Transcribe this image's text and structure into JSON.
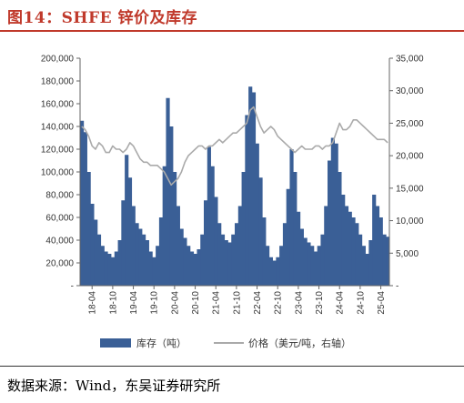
{
  "figure": {
    "title": "图14：SHFE 锌价及库存",
    "source": "数据来源：Wind，东吴证券研究所"
  },
  "chart_data": {
    "type": "bar+line",
    "left_axis": {
      "ylim": [
        0,
        200000
      ],
      "ticks": [
        0,
        20000,
        40000,
        60000,
        80000,
        100000,
        120000,
        140000,
        160000,
        180000,
        200000
      ],
      "tick_labels": [
        "-",
        "20,000",
        "40,000",
        "60,000",
        "80,000",
        "100,000",
        "120,000",
        "140,000",
        "160,000",
        "180,000",
        "200,000"
      ]
    },
    "right_axis": {
      "ylim": [
        0,
        35000
      ],
      "ticks": [
        0,
        5000,
        10000,
        15000,
        20000,
        25000,
        30000,
        35000
      ],
      "tick_labels": [
        "-",
        "5,000",
        "10,000",
        "15,000",
        "20,000",
        "25,000",
        "30,000",
        "35,000"
      ]
    },
    "x_axis": {
      "tick_labels": [
        "18-04",
        "18-10",
        "19-04",
        "19-10",
        "20-04",
        "20-10",
        "21-04",
        "21-10",
        "22-04",
        "22-10",
        "23-04",
        "23-10",
        "24-04",
        "24-10",
        "25-04"
      ]
    },
    "x": [
      "18-01",
      "18-02",
      "18-03",
      "18-04",
      "18-05",
      "18-06",
      "18-07",
      "18-08",
      "18-09",
      "18-10",
      "18-11",
      "18-12",
      "19-01",
      "19-02",
      "19-03",
      "19-04",
      "19-05",
      "19-06",
      "19-07",
      "19-08",
      "19-09",
      "19-10",
      "19-11",
      "19-12",
      "20-01",
      "20-02",
      "20-03",
      "20-04",
      "20-05",
      "20-06",
      "20-07",
      "20-08",
      "20-09",
      "20-10",
      "20-11",
      "20-12",
      "21-01",
      "21-02",
      "21-03",
      "21-04",
      "21-05",
      "21-06",
      "21-07",
      "21-08",
      "21-09",
      "21-10",
      "21-11",
      "21-12",
      "22-01",
      "22-02",
      "22-03",
      "22-04",
      "22-05",
      "22-06",
      "22-07",
      "22-08",
      "22-09",
      "22-10",
      "22-11",
      "22-12",
      "23-01",
      "23-02",
      "23-03",
      "23-04",
      "23-05",
      "23-06",
      "23-07",
      "23-08",
      "23-09",
      "23-10",
      "23-11",
      "23-12",
      "24-01",
      "24-02",
      "24-03",
      "24-04",
      "24-05",
      "24-06",
      "24-07",
      "24-08",
      "24-09",
      "24-10",
      "24-11",
      "24-12",
      "25-01",
      "25-02",
      "25-03",
      "25-04",
      "25-05",
      "25-06"
    ],
    "series": [
      {
        "name": "库存（吨）",
        "type": "bar",
        "axis": "left",
        "color": "#3a5f96",
        "values": [
          145000,
          135000,
          100000,
          72000,
          58000,
          45000,
          35000,
          30000,
          28000,
          25000,
          30000,
          40000,
          75000,
          115000,
          95000,
          70000,
          55000,
          50000,
          45000,
          40000,
          30000,
          25000,
          35000,
          60000,
          105000,
          165000,
          140000,
          100000,
          70000,
          50000,
          42000,
          35000,
          30000,
          28000,
          32000,
          45000,
          75000,
          122000,
          105000,
          78000,
          55000,
          45000,
          40000,
          38000,
          45000,
          55000,
          70000,
          100000,
          150000,
          175000,
          170000,
          125000,
          95000,
          60000,
          35000,
          25000,
          22000,
          25000,
          35000,
          55000,
          85000,
          120000,
          100000,
          65000,
          50000,
          42000,
          38000,
          35000,
          30000,
          35000,
          45000,
          70000,
          110000,
          130000,
          125000,
          100000,
          80000,
          70000,
          65000,
          60000,
          55000,
          45000,
          35000,
          28000,
          40000,
          80000,
          70000,
          60000,
          45000,
          43000
        ]
      },
      {
        "name": "价格（美元/吨，右轴）",
        "type": "line",
        "axis": "right",
        "color": "#aaaaaa",
        "values": [
          24500,
          24000,
          23000,
          21500,
          21000,
          22000,
          21500,
          20500,
          20500,
          21500,
          21000,
          21000,
          20500,
          21000,
          22000,
          21500,
          20500,
          19500,
          19000,
          19000,
          18500,
          18500,
          18500,
          18000,
          17500,
          16500,
          15500,
          16000,
          16500,
          17500,
          19000,
          20000,
          20500,
          21000,
          21500,
          21500,
          21000,
          21500,
          21500,
          22000,
          22500,
          22000,
          22500,
          23000,
          23500,
          23500,
          24000,
          24500,
          25000,
          27000,
          27500,
          26000,
          24500,
          23500,
          24000,
          24500,
          24000,
          23000,
          22500,
          22000,
          21500,
          21000,
          20500,
          21000,
          21500,
          21000,
          21000,
          21000,
          21500,
          21500,
          21000,
          21500,
          21500,
          22000,
          23500,
          25000,
          24000,
          24000,
          24500,
          25500,
          25500,
          25000,
          24500,
          24000,
          23500,
          23000,
          22500,
          22500,
          22500,
          22000
        ]
      }
    ],
    "legend": {
      "position": "bottom",
      "items": [
        "库存（吨）",
        "价格（美元/吨，右轴）"
      ]
    }
  }
}
